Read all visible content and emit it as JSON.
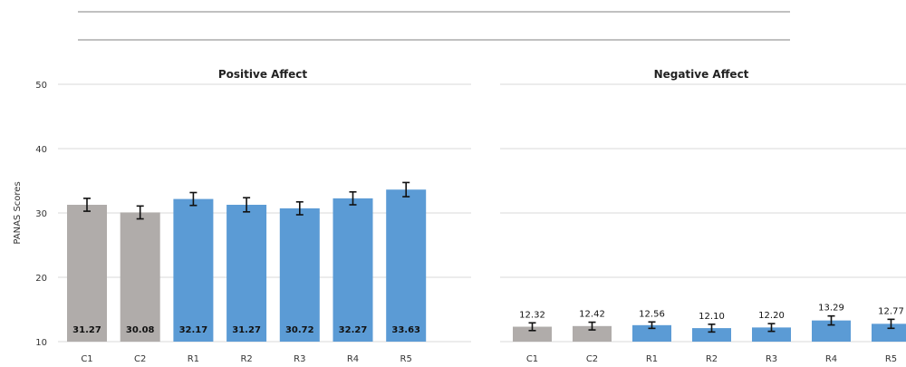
{
  "colors": {
    "control": "#b0acaa",
    "robot": "#5b9bd5",
    "gridline": "#d9d9d9",
    "errorbar": "#111111",
    "header_rule": "#808080"
  },
  "chart_data": [
    {
      "type": "bar",
      "title": "Positive Affect",
      "ylabel": "PANAS Scores",
      "ylim": [
        10,
        50
      ],
      "yticks": [
        "50",
        "40",
        "30",
        "20",
        "10"
      ],
      "grid": true,
      "categories": [
        "C1",
        "C2",
        "R1",
        "R2",
        "R3",
        "R4",
        "R5"
      ],
      "values": [
        31.27,
        30.08,
        32.17,
        31.27,
        30.72,
        32.27,
        33.63
      ],
      "labels": [
        "31.27",
        "30.08",
        "32.17",
        "31.27",
        "30.72",
        "32.27",
        "33.63"
      ],
      "errors": [
        1.0,
        1.0,
        1.0,
        1.1,
        1.0,
        1.0,
        1.1
      ],
      "groups": [
        "control",
        "control",
        "robot",
        "robot",
        "robot",
        "robot",
        "robot"
      ]
    },
    {
      "type": "bar",
      "title": "Negative Affect",
      "ylim": [
        10,
        50
      ],
      "grid": true,
      "categories": [
        "C1",
        "C2",
        "R1",
        "R2",
        "R3",
        "R4",
        "R5"
      ],
      "values": [
        12.32,
        12.42,
        12.56,
        12.1,
        12.2,
        13.29,
        12.77
      ],
      "labels": [
        "12.32",
        "12.42",
        "12.56",
        "12.10",
        "12.20",
        "13.29",
        "12.77"
      ],
      "errors": [
        0.6,
        0.6,
        0.5,
        0.6,
        0.6,
        0.7,
        0.7
      ],
      "groups": [
        "control",
        "control",
        "robot",
        "robot",
        "robot",
        "robot",
        "robot"
      ]
    }
  ]
}
